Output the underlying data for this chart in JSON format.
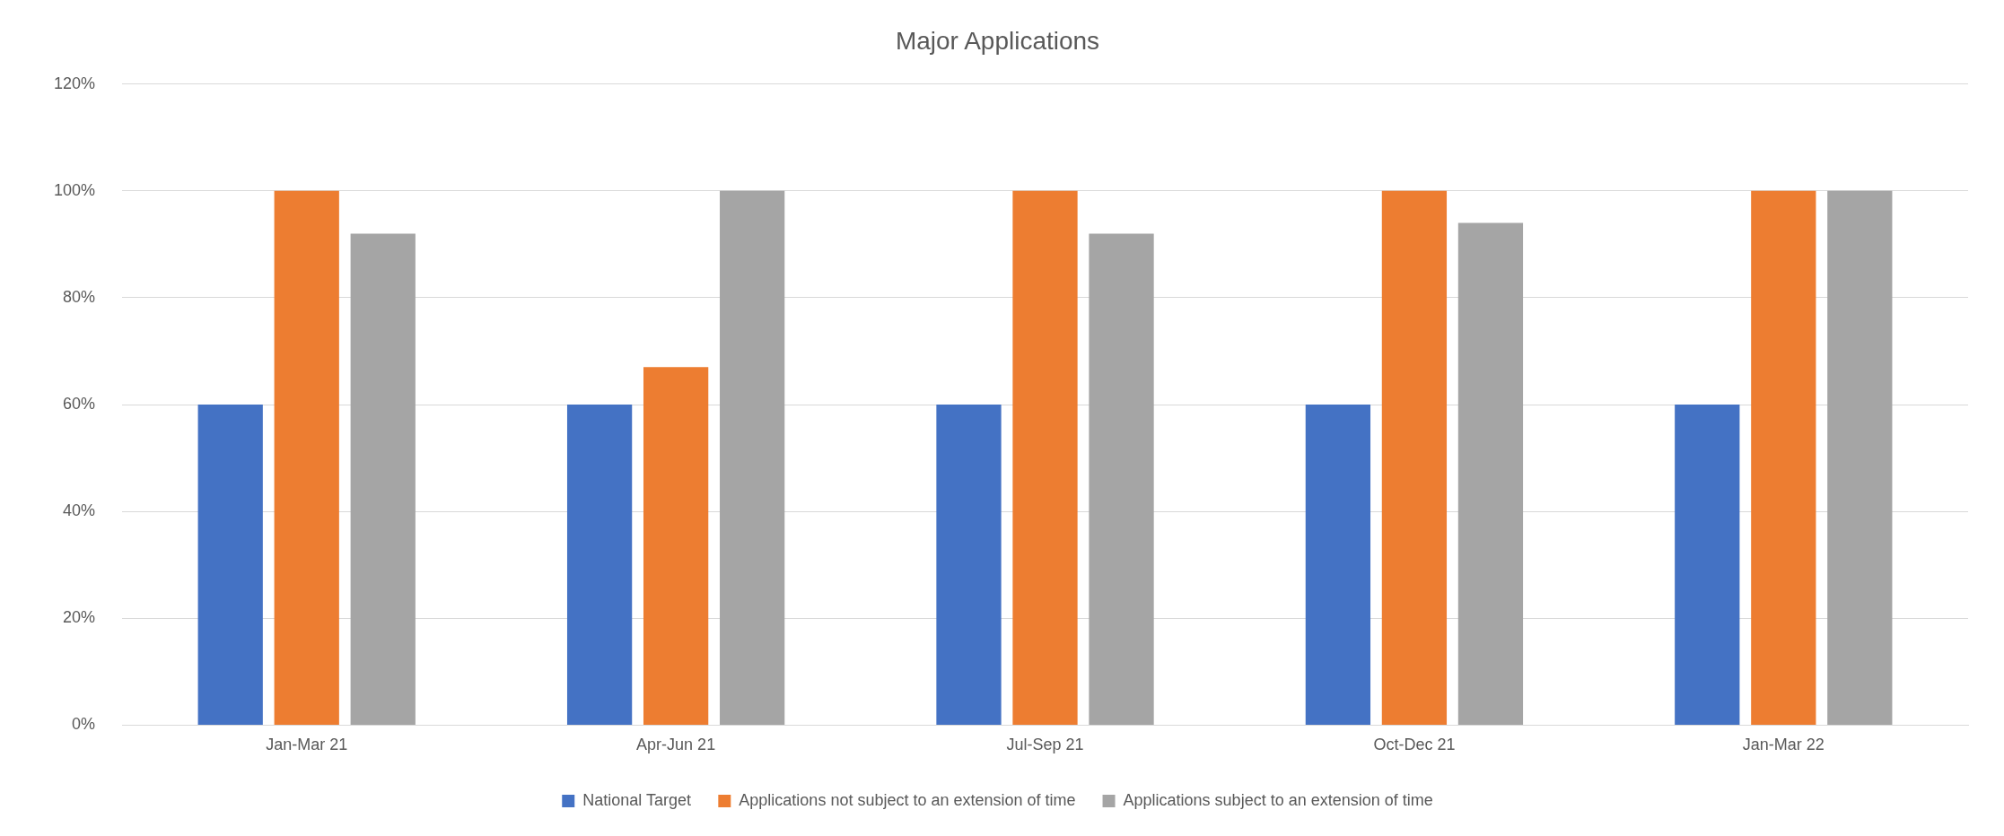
{
  "chart_data": {
    "type": "bar",
    "title": "Major Applications",
    "categories": [
      "Jan-Mar 21",
      "Apr-Jun 21",
      "Jul-Sep 21",
      "Oct-Dec 21",
      "Jan-Mar 22"
    ],
    "series": [
      {
        "name": "National Target",
        "color": "#4472c4",
        "values": [
          60,
          60,
          60,
          60,
          60
        ]
      },
      {
        "name": "Applications not subject to an extension of time",
        "color": "#ed7d31",
        "values": [
          100,
          67,
          100,
          100,
          100
        ]
      },
      {
        "name": "Applications subject to an extension of time",
        "color": "#a5a5a5",
        "values": [
          92,
          100,
          92,
          94,
          100
        ]
      }
    ],
    "ylim": [
      0,
      120
    ],
    "yticks": [
      {
        "value": 0,
        "label": "0%"
      },
      {
        "value": 20,
        "label": "20%"
      },
      {
        "value": 40,
        "label": "40%"
      },
      {
        "value": 60,
        "label": "60%"
      },
      {
        "value": 80,
        "label": "80%"
      },
      {
        "value": 100,
        "label": "100%"
      },
      {
        "value": 120,
        "label": "120%"
      }
    ],
    "grid": "y",
    "legend": "bottom"
  }
}
